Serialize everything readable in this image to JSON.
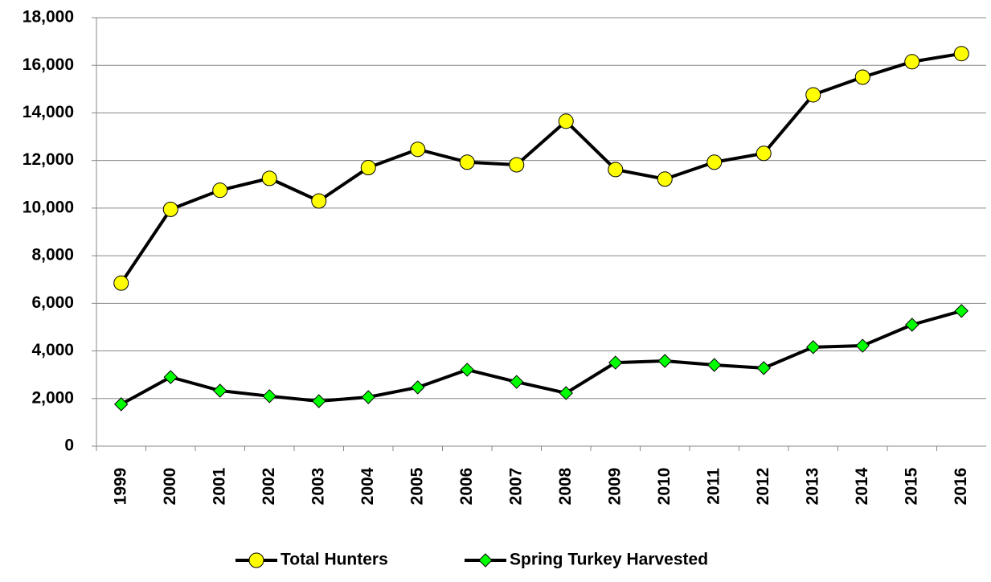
{
  "chart_data": {
    "type": "line",
    "categories": [
      "1999",
      "2000",
      "2001",
      "2002",
      "2003",
      "2004",
      "2005",
      "2006",
      "2007",
      "2008",
      "2009",
      "2010",
      "2011",
      "2012",
      "2013",
      "2014",
      "2015",
      "2016"
    ],
    "series": [
      {
        "name": "Total Hunters",
        "color": "#ffff00",
        "marker": "circle",
        "values": [
          6850,
          9950,
          10750,
          11250,
          10300,
          11700,
          12470,
          11930,
          11820,
          13650,
          11620,
          11220,
          11930,
          12300,
          14760,
          15500,
          16150,
          16490
        ]
      },
      {
        "name": "Spring Turkey Harvested",
        "color": "#00ff00",
        "marker": "diamond",
        "values": [
          1760,
          2900,
          2330,
          2100,
          1890,
          2060,
          2470,
          3210,
          2700,
          2230,
          3510,
          3580,
          3410,
          3280,
          4160,
          4220,
          5100,
          5680
        ]
      }
    ],
    "line_color": "#000000",
    "ylim": [
      0,
      18000
    ],
    "yticks": [
      0,
      {
        "value": 2000,
        "label": "2,000"
      },
      {
        "value": 4000,
        "label": "4,000"
      },
      {
        "value": 6000,
        "label": "6,000"
      },
      {
        "value": 8000,
        "label": "8,000"
      },
      {
        "value": 10000,
        "label": "10,000"
      },
      {
        "value": 12000,
        "label": "12,000"
      },
      {
        "value": 14000,
        "label": "14,000"
      },
      {
        "value": 16000,
        "label": "16,000"
      },
      {
        "value": 18000,
        "label": "18,000"
      }
    ],
    "grid": true,
    "legend": "bottom"
  }
}
